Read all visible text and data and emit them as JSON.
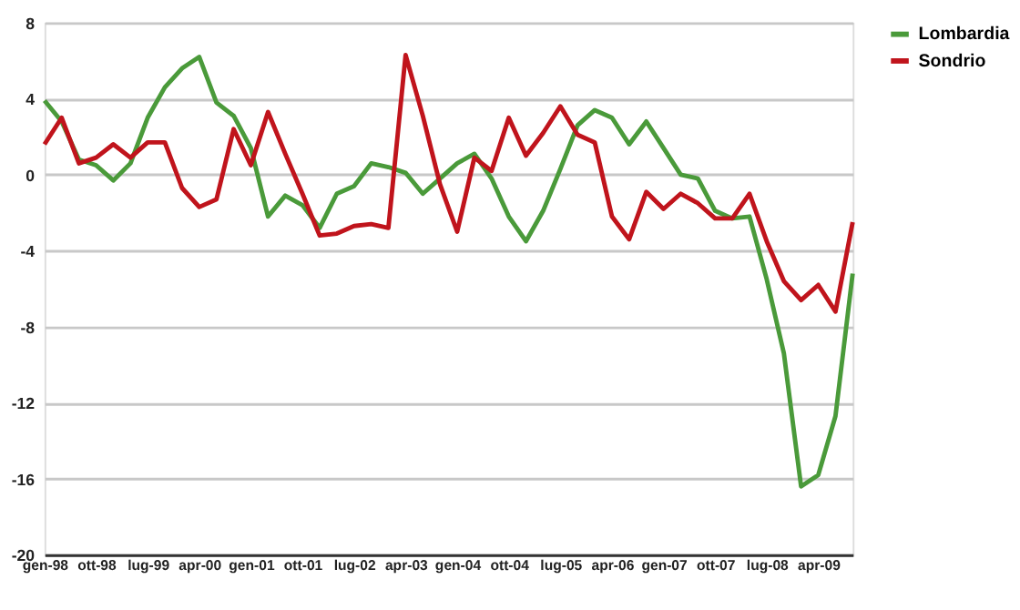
{
  "chart_data": {
    "type": "line",
    "categories": [
      "gen-98",
      null,
      null,
      "ott-98",
      null,
      null,
      "lug-99",
      null,
      null,
      "apr-00",
      null,
      null,
      "gen-01",
      null,
      null,
      "ott-01",
      null,
      null,
      "lug-02",
      null,
      null,
      "apr-03",
      null,
      null,
      "gen-04",
      null,
      null,
      "ott-04",
      null,
      null,
      "lug-05",
      null,
      null,
      "apr-06",
      null,
      null,
      "gen-07",
      null,
      null,
      "ott-07",
      null,
      null,
      "lug-08",
      null,
      null,
      "apr-09",
      null,
      null
    ],
    "series": [
      {
        "name": "Lombardia",
        "color": "#4a9a3a",
        "values": [
          3.9,
          2.8,
          0.8,
          0.5,
          -0.3,
          0.6,
          3.0,
          4.6,
          5.6,
          6.2,
          3.8,
          3.1,
          1.4,
          -2.2,
          -1.1,
          -1.6,
          -2.8,
          -1.0,
          -0.6,
          0.6,
          0.4,
          0.1,
          -1.0,
          -0.2,
          0.6,
          1.1,
          -0.2,
          -2.2,
          -3.5,
          -1.9,
          0.3,
          2.6,
          3.4,
          3.0,
          1.6,
          2.8,
          1.4,
          0.0,
          -0.2,
          -1.9,
          -2.3,
          -2.2,
          -5.5,
          -9.4,
          -16.4,
          -15.8,
          -12.7,
          -5.2
        ]
      },
      {
        "name": "Sondrio",
        "color": "#c0141c",
        "values": [
          1.6,
          3.0,
          0.6,
          0.9,
          1.6,
          0.9,
          1.7,
          1.7,
          -0.7,
          -1.7,
          -1.3,
          2.4,
          0.5,
          3.3,
          1.1,
          -1.0,
          -3.2,
          -3.1,
          -2.7,
          -2.6,
          -2.8,
          6.3,
          3.1,
          -0.5,
          -3.0,
          0.9,
          0.2,
          3.0,
          1.0,
          2.2,
          3.6,
          2.1,
          1.7,
          -2.2,
          -3.4,
          -0.9,
          -1.8,
          -1.0,
          -1.5,
          -2.3,
          -2.3,
          -1.0,
          -3.5,
          -5.6,
          -6.6,
          -5.8,
          -7.2,
          -2.5
        ]
      }
    ],
    "ylim": [
      -20,
      8
    ],
    "yticks": [
      -20,
      -16,
      -12,
      -8,
      -4,
      0,
      4,
      8
    ],
    "grid": "y",
    "legend": "right",
    "marker": "none",
    "line_style": "solid"
  }
}
